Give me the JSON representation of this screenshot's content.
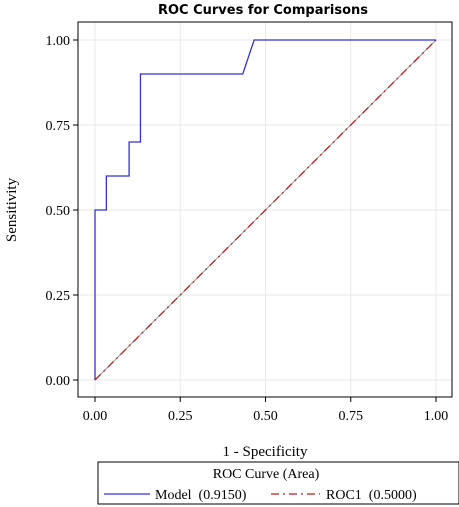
{
  "chart_data": {
    "type": "line",
    "title": "ROC Curves for Comparisons",
    "xlabel": "1 - Specificity",
    "ylabel": "Sensitivity",
    "xlim": [
      0,
      1
    ],
    "ylim": [
      0,
      1
    ],
    "x_ticks": [
      "0.00",
      "0.25",
      "0.50",
      "0.75",
      "1.00"
    ],
    "y_ticks": [
      "0.00",
      "0.25",
      "0.50",
      "0.75",
      "1.00"
    ],
    "grid": true,
    "diagonal_reference": true,
    "legend": {
      "title": "ROC Curve (Area)",
      "placement": "bottom",
      "entries": [
        "Model  (0.9150)",
        "ROC1  (0.5000)"
      ]
    },
    "series": [
      {
        "name": "Model",
        "area": 0.915,
        "color": "#3333cc",
        "style": "solid",
        "x": [
          0,
          0,
          0.0333,
          0.0333,
          0.1,
          0.1,
          0.1333,
          0.1333,
          0.4333,
          0.4667,
          1
        ],
        "y": [
          0,
          0.5,
          0.5,
          0.6,
          0.6,
          0.7,
          0.7,
          0.9,
          0.9,
          1.0,
          1.0
        ]
      },
      {
        "name": "ROC1",
        "area": 0.5,
        "color": "#b22222",
        "style": "dashed",
        "x": [
          0,
          1
        ],
        "y": [
          0,
          1
        ]
      }
    ]
  }
}
